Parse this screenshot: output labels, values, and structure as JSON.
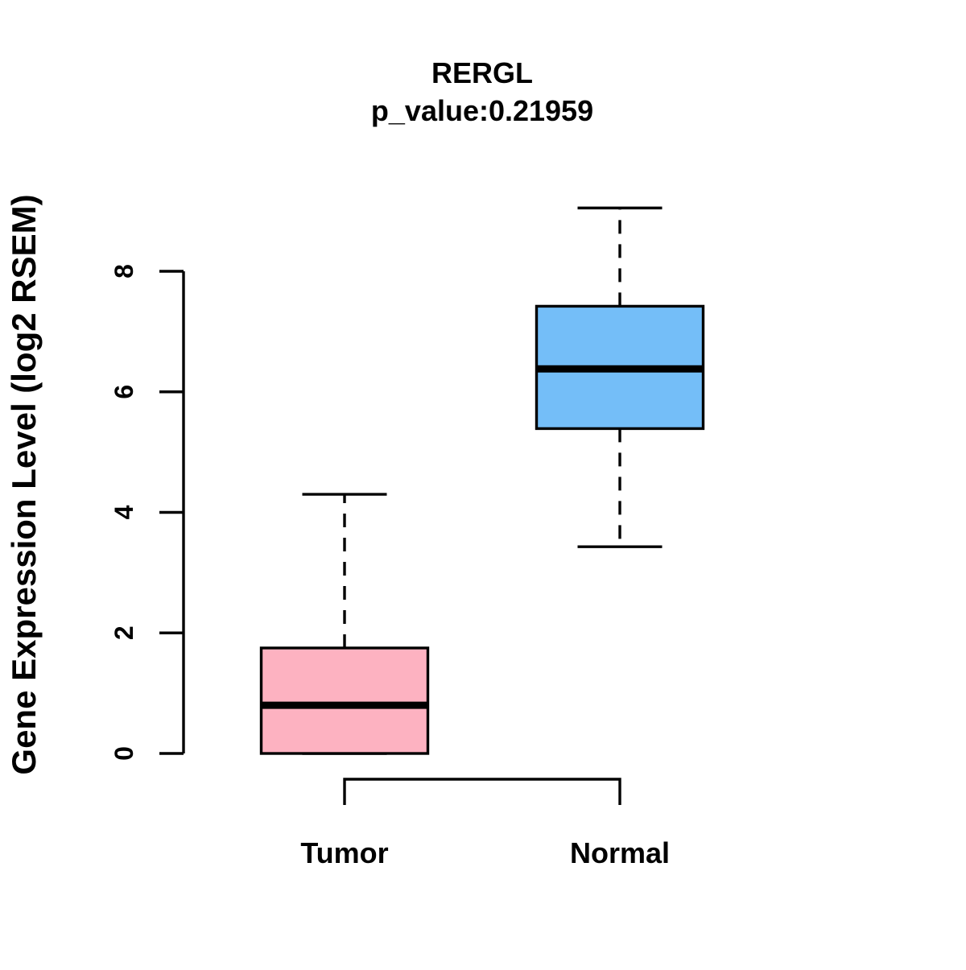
{
  "chart_data": {
    "type": "boxplot",
    "title": "RERGL",
    "subtitle": "p_value:0.21959",
    "ylabel": "Gene Expression Level (log2 RSEM)",
    "xlabel": "",
    "categories": [
      "Tumor",
      "Normal"
    ],
    "yticks": [
      "0",
      "2",
      "4",
      "6",
      "8"
    ],
    "ytick_values": [
      0,
      2,
      4,
      6,
      8
    ],
    "ylim": [
      0,
      9.05
    ],
    "grid": "off",
    "legend": "none",
    "whisker_style": "dashed",
    "line_color": "#000000",
    "background_color": "#ffffff",
    "series": [
      {
        "name": "Tumor",
        "box_color": "#FDB2C1",
        "min": 0,
        "q1": 0,
        "median": 0.8,
        "q3": 1.75,
        "max": 4.3
      },
      {
        "name": "Normal",
        "box_color": "#74BEF8",
        "min": 3.43,
        "q1": 5.39,
        "median": 6.38,
        "q3": 7.42,
        "max": 9.05
      }
    ]
  }
}
